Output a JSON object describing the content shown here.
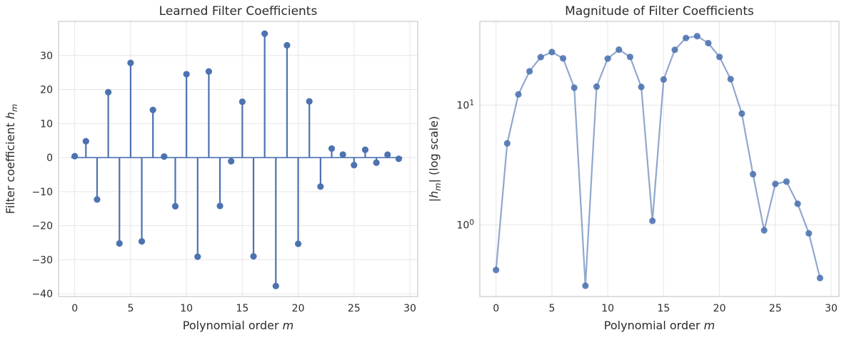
{
  "figure": {
    "background": "#ffffff"
  },
  "style": {
    "accent_blue": "#4C72B0",
    "line_blue": "rgba(76,114,176,0.62)",
    "marker_blue": "rgba(76,114,176,0.88)",
    "grid_color": "#E6E6E6",
    "spine_color": "#C9C9C9",
    "text_color": "#2B2B2B"
  },
  "chart_data": [
    {
      "id": "stem-plot",
      "type": "stem",
      "title": "Learned Filter Coefficients",
      "xlabel_parts": [
        [
          "Polynomial order ",
          "n"
        ],
        [
          "m",
          "i"
        ]
      ],
      "ylabel_parts": [
        [
          "Filter coefficient ",
          "n"
        ],
        [
          "h",
          "i"
        ],
        [
          "m",
          "is"
        ]
      ],
      "x": [
        0,
        1,
        2,
        3,
        4,
        5,
        6,
        7,
        8,
        9,
        10,
        11,
        12,
        13,
        14,
        15,
        16,
        17,
        18,
        19,
        20,
        21,
        22,
        23,
        24,
        25,
        26,
        27,
        28,
        29
      ],
      "values": [
        0.42,
        4.8,
        -12.3,
        19.2,
        -25.2,
        27.8,
        -24.6,
        14.0,
        0.31,
        -14.3,
        24.5,
        -29.1,
        25.3,
        -14.2,
        -1.08,
        16.4,
        -29.0,
        36.4,
        -37.7,
        33.0,
        -25.3,
        16.5,
        -8.5,
        2.65,
        0.9,
        -2.2,
        2.3,
        -1.5,
        0.85,
        -0.36
      ],
      "xlim": [
        -1.45,
        30.7
      ],
      "ylim": [
        -40.8,
        40.0
      ],
      "yscale": "linear",
      "baseline": 0,
      "grid": true,
      "xticks": [
        0,
        5,
        10,
        15,
        20,
        25,
        30
      ],
      "xtick_labels": [
        "0",
        "5",
        "10",
        "15",
        "20",
        "25",
        "30"
      ],
      "yticks": [
        30,
        20,
        10,
        0,
        -10,
        -20,
        -30,
        -40
      ],
      "ytick_labels": [
        "30",
        "20",
        "10",
        "0",
        "−10",
        "−20",
        "−30",
        "−40"
      ]
    },
    {
      "id": "magnitude-plot",
      "type": "line",
      "title": "Magnitude of Filter Coefficients",
      "xlabel_parts": [
        [
          "Polynomial order ",
          "n"
        ],
        [
          "m",
          "i"
        ]
      ],
      "ylabel_parts": [
        [
          "|",
          "n"
        ],
        [
          "h",
          "i"
        ],
        [
          "m",
          "is"
        ],
        [
          "| (log scale)",
          "n"
        ]
      ],
      "x": [
        0,
        1,
        2,
        3,
        4,
        5,
        6,
        7,
        8,
        9,
        10,
        11,
        12,
        13,
        14,
        15,
        16,
        17,
        18,
        19,
        20,
        21,
        22,
        23,
        24,
        25,
        26,
        27,
        28,
        29
      ],
      "values": [
        0.42,
        4.8,
        12.3,
        19.2,
        25.2,
        27.8,
        24.6,
        14.0,
        0.31,
        14.3,
        24.5,
        29.1,
        25.3,
        14.2,
        1.08,
        16.4,
        29.0,
        36.4,
        37.7,
        33.0,
        25.3,
        16.5,
        8.5,
        2.65,
        0.9,
        2.2,
        2.3,
        1.5,
        0.85,
        0.36
      ],
      "xlim": [
        -1.45,
        30.7
      ],
      "ylim": [
        0.252,
        50.1
      ],
      "yscale": "log",
      "grid": true,
      "xticks": [
        0,
        5,
        10,
        15,
        20,
        25,
        30
      ],
      "xtick_labels": [
        "0",
        "5",
        "10",
        "15",
        "20",
        "25",
        "30"
      ],
      "yticks": [
        1,
        10
      ],
      "ytick_labels_rich": [
        [
          [
            "10",
            "n"
          ],
          [
            "0",
            "sup"
          ]
        ],
        [
          [
            "10",
            "n"
          ],
          [
            "1",
            "sup"
          ]
        ]
      ]
    }
  ]
}
